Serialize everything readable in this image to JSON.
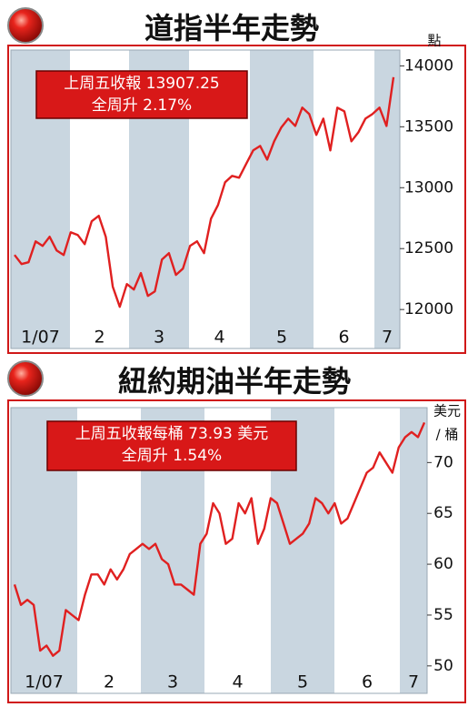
{
  "chart_data": [
    {
      "type": "line",
      "title": "道指半年走勢",
      "y_unit": [
        "點"
      ],
      "annotations": [
        "上周五收報 13907.25",
        "全周升 2.17%"
      ],
      "x_labels": [
        "1/07",
        "2",
        "3",
        "4",
        "5",
        "6",
        "7"
      ],
      "color": "#e02020",
      "band_color": "#c9d6e0",
      "values": [
        12448,
        12373,
        12388,
        12560,
        12522,
        12597,
        12485,
        12448,
        12634,
        12612,
        12537,
        12724,
        12769,
        12597,
        12187,
        12022,
        12209,
        12164,
        12299,
        12112,
        12149,
        12410,
        12463,
        12284,
        12336,
        12522,
        12560,
        12463,
        12746,
        12858,
        13045,
        13097,
        13082,
        13194,
        13306,
        13343,
        13231,
        13381,
        13493,
        13567,
        13507,
        13657,
        13604,
        13433,
        13567,
        13306,
        13657,
        13627,
        13381,
        13455,
        13567,
        13604,
        13657,
        13507,
        13907.25
      ],
      "ylim": [
        11680,
        14130
      ],
      "yticks": [
        12000,
        12500,
        13000,
        13500,
        14000
      ]
    },
    {
      "type": "line",
      "title": "紐約期油半年走勢",
      "y_unit": [
        "美元",
        "/ 桶"
      ],
      "annotations": [
        "上周五收報每桶 73.93 美元",
        "全周升 1.54%"
      ],
      "x_labels": [
        "1/07",
        "2",
        "3",
        "4",
        "5",
        "6",
        "7"
      ],
      "color": "#e02020",
      "band_color": "#c9d6e0",
      "values": [
        58,
        56,
        56.5,
        56,
        51.5,
        52,
        51,
        51.5,
        55.5,
        55,
        54.5,
        57,
        59,
        59,
        58,
        59.5,
        58.5,
        59.5,
        61,
        61.5,
        62,
        61.5,
        62,
        60.5,
        60,
        58,
        58,
        57.5,
        57,
        62,
        63,
        66,
        65,
        62,
        62.5,
        66,
        65,
        66.5,
        62,
        63.5,
        66.5,
        66,
        64,
        62,
        62.5,
        63,
        64,
        66.5,
        66,
        65,
        66,
        64,
        64.5,
        66,
        67.5,
        69,
        69.5,
        71,
        70,
        69,
        71.5,
        72.5,
        73,
        72.5,
        73.93
      ],
      "ylim": [
        47.3,
        75.4
      ],
      "yticks": [
        50,
        55,
        60,
        65,
        70
      ]
    }
  ]
}
